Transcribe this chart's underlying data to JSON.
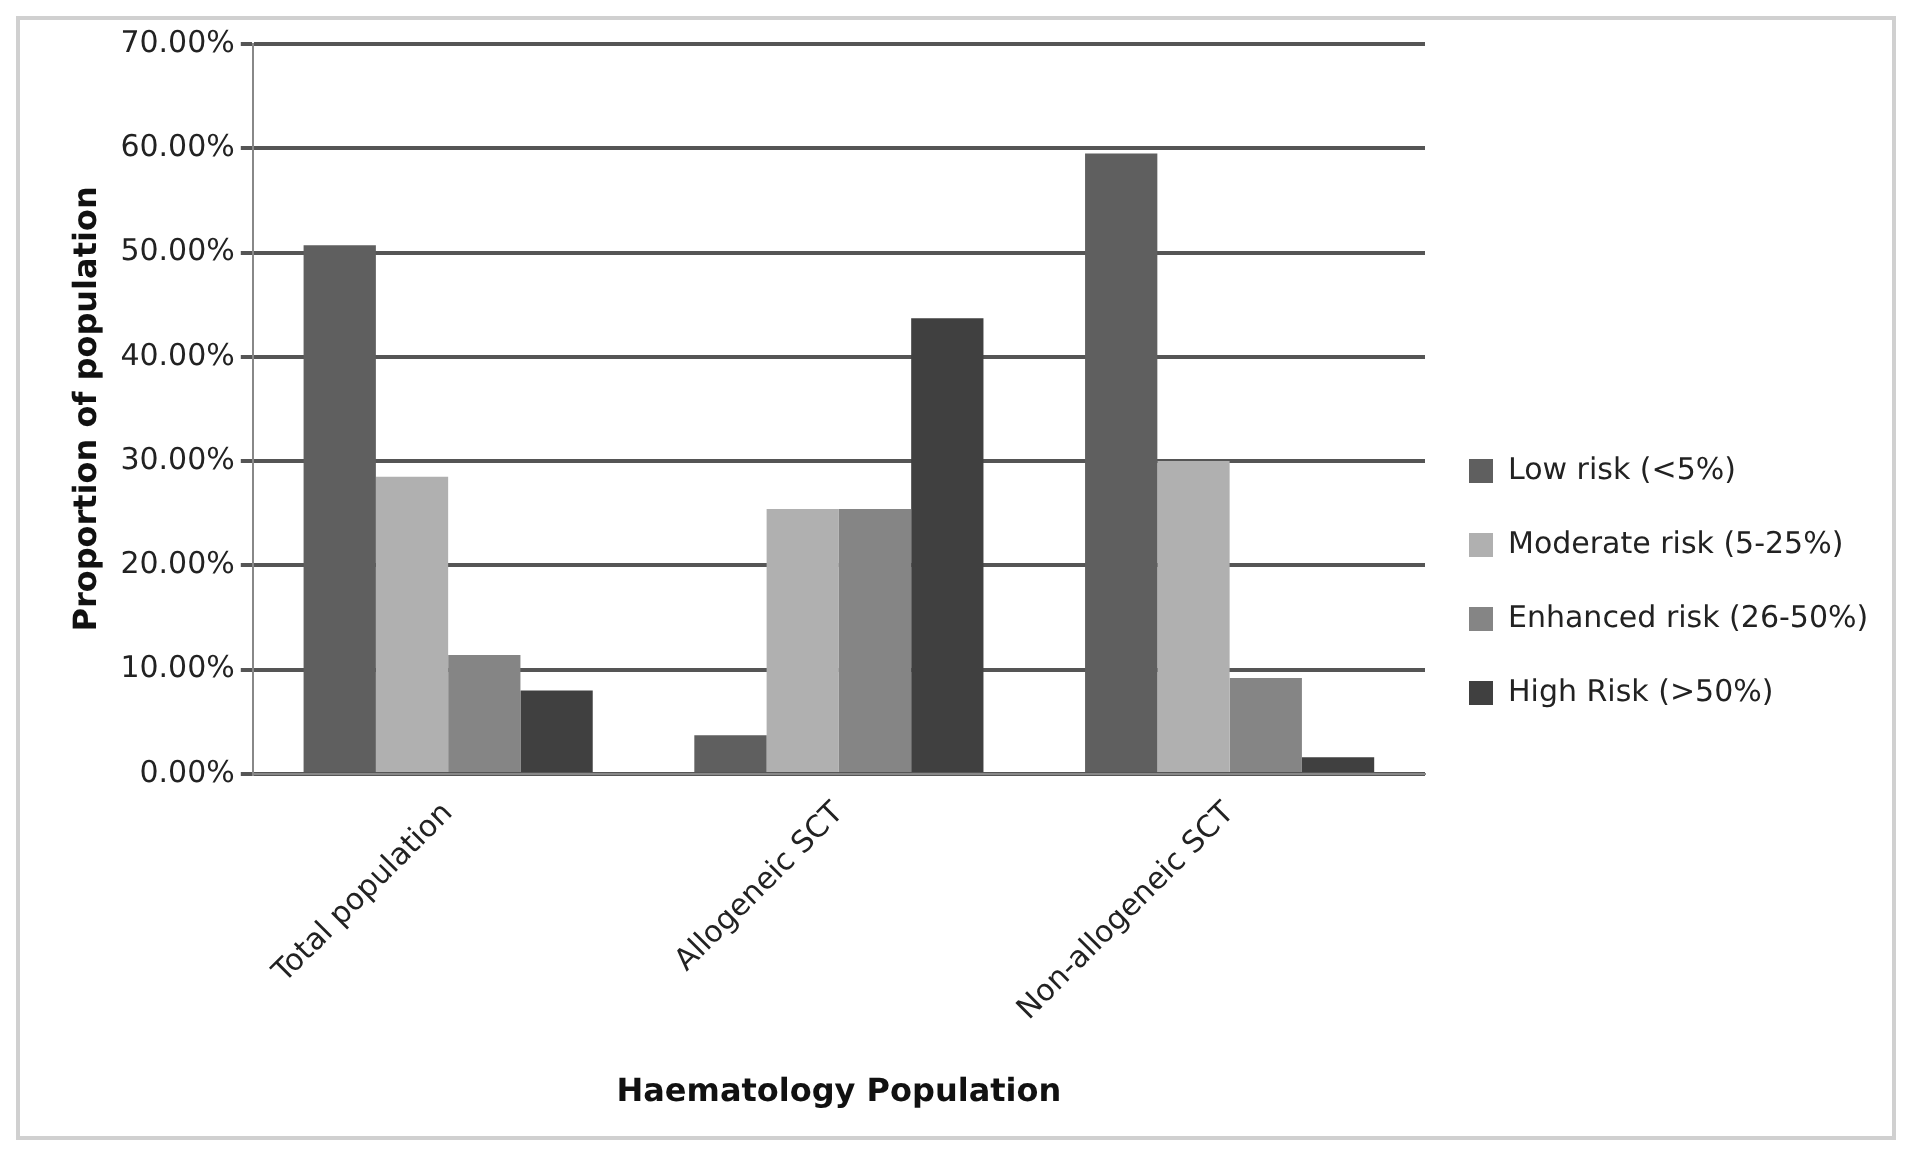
{
  "chart_data": {
    "type": "bar",
    "xlabel": "Haematology Population",
    "ylabel": "Proportion of population",
    "categories": [
      "Total population",
      "Allogeneic SCT",
      "Non-allogeneic SCT"
    ],
    "series": [
      {
        "name": "Low risk (<5%)",
        "color": "#5f5f5f",
        "values": [
          50.7,
          3.7,
          59.5
        ]
      },
      {
        "name": "Moderate risk (5-25%)",
        "color": "#b0b0b0",
        "values": [
          28.5,
          25.4,
          30
        ]
      },
      {
        "name": "Enhanced risk (26-50%)",
        "color": "#858585",
        "values": [
          11.4,
          25.4,
          9.2
        ]
      },
      {
        "name": "High Risk (>50%)",
        "color": "#404040",
        "values": [
          8,
          43.7,
          1.6
        ]
      }
    ],
    "ylim": [
      0,
      70
    ],
    "yticks": [
      {
        "value": 0,
        "label": "0.00%"
      },
      {
        "value": 10,
        "label": "10.00%"
      },
      {
        "value": 20,
        "label": "20.00%"
      },
      {
        "value": 30,
        "label": "30.00%"
      },
      {
        "value": 40,
        "label": "40.00%"
      },
      {
        "value": 50,
        "label": "50.00%"
      },
      {
        "value": 60,
        "label": "60.00%"
      },
      {
        "value": 70,
        "label": "70.00%"
      }
    ],
    "grid": "y",
    "legend": "right"
  }
}
